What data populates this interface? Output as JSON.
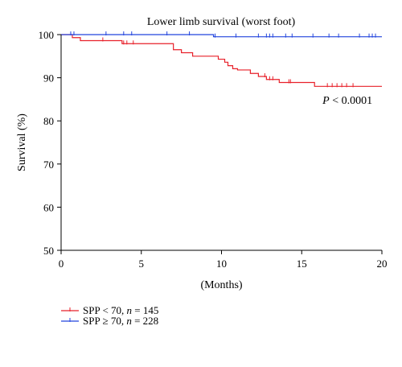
{
  "chart_data": {
    "type": "line",
    "title": "Lower limb survival (worst foot)",
    "xlabel": "(Months)",
    "ylabel": "Survival (%)",
    "xlim": [
      0,
      20
    ],
    "ylim": [
      50,
      100
    ],
    "xticks": [
      0,
      5,
      10,
      15,
      20
    ],
    "yticks": [
      50,
      60,
      70,
      80,
      90,
      100
    ],
    "grid": false,
    "legend_position": "bottom-left",
    "annotation": {
      "italic": "P",
      "rest": " < 0.0001",
      "x": 16.3,
      "y": 84
    },
    "series": [
      {
        "name_parts": [
          "SPP < 70, ",
          "n",
          " = 145"
        ],
        "color": "#e8202a",
        "steps": [
          [
            0,
            100
          ],
          [
            0.7,
            99.3
          ],
          [
            1.2,
            98.6
          ],
          [
            3.8,
            97.9
          ],
          [
            7.0,
            96.5
          ],
          [
            7.5,
            95.8
          ],
          [
            8.2,
            95.0
          ],
          [
            9.8,
            94.3
          ],
          [
            10.2,
            93.6
          ],
          [
            10.4,
            92.8
          ],
          [
            10.7,
            92.1
          ],
          [
            11.0,
            91.8
          ],
          [
            11.8,
            91.0
          ],
          [
            12.3,
            90.3
          ],
          [
            12.8,
            89.6
          ],
          [
            13.6,
            88.9
          ],
          [
            15.8,
            88.0
          ],
          [
            20,
            88.0
          ]
        ],
        "censored": [
          [
            2.6,
            98.6
          ],
          [
            3.9,
            97.9
          ],
          [
            4.1,
            97.9
          ],
          [
            4.5,
            97.9
          ],
          [
            12.7,
            90.3
          ],
          [
            13.0,
            89.6
          ],
          [
            13.2,
            89.6
          ],
          [
            14.2,
            88.9
          ],
          [
            14.3,
            88.9
          ],
          [
            16.6,
            88.0
          ],
          [
            16.9,
            88.0
          ],
          [
            17.2,
            88.0
          ],
          [
            17.5,
            88.0
          ],
          [
            17.8,
            88.0
          ],
          [
            18.2,
            88.0
          ]
        ]
      },
      {
        "name_parts": [
          "SPP ≥ 70, ",
          "n",
          " = 228"
        ],
        "color": "#2244dd",
        "steps": [
          [
            0,
            100
          ],
          [
            9.5,
            99.5
          ],
          [
            20,
            99.5
          ]
        ],
        "censored": [
          [
            0.6,
            100
          ],
          [
            0.8,
            100
          ],
          [
            2.8,
            100
          ],
          [
            3.9,
            100
          ],
          [
            4.4,
            100
          ],
          [
            6.6,
            100
          ],
          [
            8.0,
            100
          ],
          [
            9.6,
            99.5
          ],
          [
            10.9,
            99.5
          ],
          [
            12.3,
            99.5
          ],
          [
            12.8,
            99.5
          ],
          [
            13.0,
            99.5
          ],
          [
            13.2,
            99.5
          ],
          [
            14.0,
            99.5
          ],
          [
            14.4,
            99.5
          ],
          [
            15.7,
            99.5
          ],
          [
            16.7,
            99.5
          ],
          [
            17.3,
            99.5
          ],
          [
            18.6,
            99.5
          ],
          [
            19.2,
            99.5
          ],
          [
            19.4,
            99.5
          ],
          [
            19.6,
            99.5
          ]
        ]
      }
    ]
  }
}
